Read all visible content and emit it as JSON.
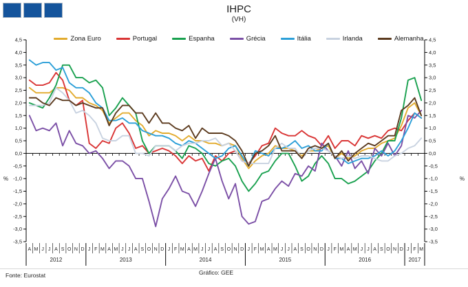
{
  "logo": {
    "square_color": "#14549C",
    "square_count": 3
  },
  "footer": {
    "source": "Fonte: Eurostat",
    "credit": "Gráfico: GEE"
  },
  "chart_data": {
    "type": "line",
    "title": "IHPC",
    "subtitle": "(VH)",
    "ylabel_left": "%",
    "ylabel_right": "%",
    "ylim": [
      -3.5,
      4.5
    ],
    "ytick_step": 0.5,
    "grid": false,
    "legend_position": "top",
    "x_range": "Apr 2012 - Mar 2017",
    "month_labels": [
      "A",
      "M",
      "J",
      "J",
      "A",
      "S",
      "O",
      "N",
      "D",
      "J",
      "F",
      "M",
      "A",
      "M",
      "J",
      "J",
      "A",
      "S",
      "O",
      "N",
      "D",
      "J",
      "F",
      "M",
      "A",
      "M",
      "J",
      "J",
      "A",
      "S",
      "O",
      "N",
      "D",
      "J",
      "F",
      "M",
      "A",
      "M",
      "J",
      "J",
      "A",
      "S",
      "O",
      "N",
      "D",
      "J",
      "F",
      "M",
      "A",
      "M",
      "J",
      "J",
      "A",
      "S",
      "O",
      "N",
      "D",
      "J",
      "F",
      "M"
    ],
    "year_groups": [
      {
        "label": "2012",
        "months": 9
      },
      {
        "label": "2013",
        "months": 12
      },
      {
        "label": "2014",
        "months": 12
      },
      {
        "label": "2015",
        "months": 12
      },
      {
        "label": "2016",
        "months": 12
      },
      {
        "label": "2017",
        "months": 3
      }
    ],
    "series": [
      {
        "name": "Zona Euro",
        "color": "#E2AB2D",
        "values": [
          2.6,
          2.4,
          2.4,
          2.4,
          2.6,
          2.6,
          2.5,
          2.2,
          2.2,
          2.0,
          1.9,
          1.7,
          1.2,
          1.4,
          1.6,
          1.6,
          1.3,
          1.1,
          0.7,
          0.9,
          0.8,
          0.8,
          0.7,
          0.5,
          0.7,
          0.5,
          0.5,
          0.4,
          0.4,
          0.3,
          0.4,
          0.3,
          -0.2,
          -0.6,
          -0.3,
          -0.1,
          0.0,
          0.3,
          0.2,
          0.2,
          0.1,
          -0.1,
          0.1,
          0.1,
          0.2,
          0.3,
          -0.2,
          0.0,
          -0.2,
          -0.1,
          0.1,
          0.2,
          0.2,
          0.4,
          0.5,
          0.6,
          1.1,
          1.8,
          2.0,
          1.5
        ]
      },
      {
        "name": "Portugal",
        "color": "#D93434",
        "values": [
          2.9,
          2.7,
          2.7,
          2.8,
          3.2,
          2.9,
          2.1,
          1.9,
          2.1,
          0.4,
          0.2,
          0.5,
          0.4,
          1.0,
          1.2,
          0.8,
          0.2,
          0.3,
          0.0,
          0.1,
          0.2,
          0.1,
          -0.1,
          -0.4,
          -0.1,
          -0.3,
          -0.2,
          -0.7,
          -0.1,
          -0.3,
          0.0,
          0.1,
          -0.3,
          -0.4,
          -0.1,
          0.3,
          0.4,
          1.0,
          0.8,
          0.7,
          0.7,
          0.9,
          0.7,
          0.6,
          0.3,
          0.7,
          0.2,
          0.5,
          0.5,
          0.3,
          0.7,
          0.6,
          0.7,
          0.6,
          0.9,
          1.0,
          0.9,
          1.3,
          1.6,
          1.4
        ]
      },
      {
        "name": "Espanha",
        "color": "#18A04E",
        "values": [
          2.0,
          1.9,
          1.8,
          2.2,
          2.7,
          3.5,
          3.5,
          3.0,
          3.0,
          2.8,
          2.9,
          2.6,
          1.5,
          1.8,
          2.2,
          1.9,
          1.6,
          0.5,
          0.0,
          0.3,
          0.3,
          0.3,
          0.1,
          -0.2,
          0.3,
          0.2,
          0.0,
          -0.4,
          -0.5,
          -0.3,
          -0.2,
          -0.5,
          -1.1,
          -1.5,
          -1.2,
          -0.8,
          -0.7,
          -0.3,
          0.0,
          0.0,
          -0.5,
          -1.1,
          -0.9,
          -0.4,
          -0.1,
          -0.4,
          -1.0,
          -1.0,
          -1.2,
          -1.1,
          -0.9,
          -0.7,
          -0.3,
          0.0,
          0.5,
          0.5,
          1.4,
          2.9,
          3.0,
          2.1
        ]
      },
      {
        "name": "Grécia",
        "color": "#7B4FA6",
        "values": [
          1.5,
          0.9,
          1.0,
          0.9,
          1.2,
          0.3,
          0.9,
          0.4,
          0.3,
          0.0,
          0.1,
          -0.2,
          -0.6,
          -0.3,
          -0.3,
          -0.5,
          -1.0,
          -1.0,
          -1.9,
          -2.9,
          -1.8,
          -1.4,
          -0.9,
          -1.5,
          -1.6,
          -2.1,
          -1.5,
          -0.8,
          -0.2,
          -1.1,
          -1.8,
          -1.2,
          -2.5,
          -2.8,
          -2.7,
          -1.9,
          -1.8,
          -1.4,
          -1.1,
          -1.3,
          -0.8,
          -0.9,
          -0.5,
          -0.7,
          0.4,
          0.1,
          -0.1,
          -0.5,
          0.1,
          -0.6,
          -0.3,
          -0.8,
          0.2,
          -0.1,
          0.4,
          -0.1,
          0.3,
          1.5,
          1.4,
          1.7
        ]
      },
      {
        "name": "Itália",
        "color": "#2B9FD8",
        "values": [
          3.7,
          3.5,
          3.6,
          3.6,
          3.3,
          3.4,
          2.8,
          2.6,
          2.6,
          2.4,
          2.0,
          1.8,
          1.3,
          1.3,
          1.4,
          1.2,
          1.2,
          0.9,
          0.8,
          0.7,
          0.7,
          0.6,
          0.4,
          0.3,
          0.5,
          0.4,
          0.2,
          0.0,
          -0.2,
          -0.1,
          0.2,
          0.3,
          -0.1,
          -0.5,
          0.1,
          0.0,
          -0.1,
          0.2,
          0.2,
          0.3,
          0.5,
          0.2,
          0.3,
          0.1,
          0.1,
          0.4,
          -0.2,
          -0.2,
          -0.4,
          -0.3,
          -0.2,
          -0.2,
          -0.1,
          0.1,
          -0.1,
          0.1,
          0.5,
          1.0,
          1.6,
          1.4
        ]
      },
      {
        "name": "Irlanda",
        "color": "#C8D2E0",
        "values": [
          1.9,
          1.9,
          1.9,
          2.0,
          2.6,
          2.4,
          2.1,
          1.6,
          1.7,
          1.5,
          1.2,
          0.6,
          0.5,
          0.5,
          0.7,
          0.7,
          0.0,
          0.0,
          -0.1,
          0.3,
          0.3,
          0.3,
          0.1,
          0.3,
          0.4,
          0.4,
          0.5,
          0.5,
          0.6,
          0.3,
          0.4,
          0.1,
          -0.3,
          -0.4,
          -0.4,
          -0.4,
          -0.4,
          0.2,
          0.4,
          0.2,
          0.2,
          -0.2,
          0.1,
          0.2,
          0.2,
          0.1,
          -0.1,
          -0.2,
          -0.1,
          -0.2,
          -0.1,
          -0.1,
          -0.2,
          -0.3,
          -0.3,
          -0.1,
          0.0,
          0.2,
          0.3,
          0.6
        ]
      },
      {
        "name": "Alemanha",
        "color": "#5B3A1E",
        "values": [
          2.2,
          2.2,
          2.0,
          1.9,
          2.2,
          2.1,
          2.1,
          1.9,
          2.0,
          1.9,
          1.8,
          1.8,
          1.1,
          1.6,
          1.9,
          1.9,
          1.6,
          1.6,
          1.2,
          1.6,
          1.2,
          1.2,
          1.0,
          0.9,
          1.1,
          0.6,
          1.0,
          0.8,
          0.8,
          0.8,
          0.7,
          0.5,
          0.1,
          -0.5,
          0.0,
          0.1,
          0.3,
          0.7,
          0.1,
          0.1,
          0.1,
          -0.2,
          0.2,
          0.3,
          0.2,
          0.4,
          -0.2,
          0.1,
          -0.3,
          0.0,
          0.2,
          0.4,
          0.3,
          0.5,
          0.7,
          0.7,
          1.7,
          1.9,
          2.2,
          1.5
        ]
      }
    ]
  }
}
